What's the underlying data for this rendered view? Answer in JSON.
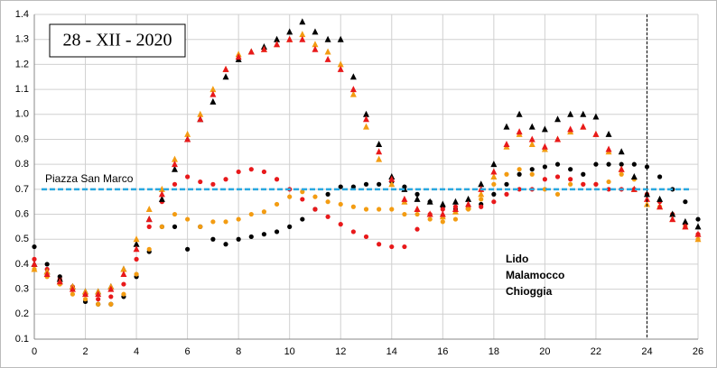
{
  "chart_data": {
    "type": "scatter",
    "title": "28 - XII - 2020",
    "x": [
      0,
      0.5,
      1,
      1.5,
      2,
      2.5,
      3,
      3.5,
      4,
      4.5,
      5,
      5.5,
      6,
      6.5,
      7,
      7.5,
      8,
      8.5,
      9,
      9.5,
      10,
      10.5,
      11,
      11.5,
      12,
      12.5,
      13,
      13.5,
      14,
      14.5,
      15,
      15.5,
      16,
      16.5,
      17,
      17.5,
      18,
      18.5,
      19,
      19.5,
      20,
      20.5,
      21,
      21.5,
      22,
      22.5,
      23,
      23.5,
      24,
      24.5,
      25,
      25.5,
      26
    ],
    "series": [
      {
        "name": "Lido",
        "color": "#000000",
        "triangles": [
          0.4,
          0.37,
          0.34,
          0.31,
          0.29,
          0.29,
          0.31,
          0.38,
          0.48,
          0.58,
          0.66,
          0.78,
          0.9,
          0.98,
          1.05,
          1.15,
          1.22,
          1.25,
          1.27,
          1.3,
          1.33,
          1.37,
          1.33,
          1.3,
          1.3,
          1.15,
          1.0,
          0.88,
          0.75,
          0.7,
          0.66,
          0.65,
          0.64,
          0.65,
          0.66,
          0.72,
          0.8,
          0.95,
          1.0,
          0.95,
          0.94,
          0.98,
          1.0,
          1.0,
          0.99,
          0.92,
          0.85,
          0.75,
          0.68,
          0.66,
          0.6,
          0.57,
          0.55
        ],
        "dots": [
          0.47,
          0.4,
          0.35,
          0.3,
          0.25,
          0.24,
          0.24,
          0.27,
          0.35,
          0.45,
          0.55,
          0.55,
          0.46,
          0.55,
          0.5,
          0.48,
          0.5,
          0.51,
          0.52,
          0.53,
          0.55,
          0.58,
          0.62,
          0.68,
          0.71,
          0.71,
          0.72,
          0.72,
          0.73,
          0.71,
          0.68,
          0.65,
          0.63,
          0.62,
          0.63,
          0.64,
          0.68,
          0.72,
          0.76,
          0.78,
          0.79,
          0.8,
          0.78,
          0.76,
          0.8,
          0.8,
          0.8,
          0.8,
          0.79,
          0.75,
          0.7,
          0.65,
          0.58
        ]
      },
      {
        "name": "Malamocco",
        "color": "#f39c12",
        "triangles": [
          0.38,
          0.37,
          0.33,
          0.31,
          0.29,
          0.29,
          0.31,
          0.38,
          0.5,
          0.62,
          0.7,
          0.82,
          0.92,
          1.0,
          1.1,
          1.18,
          1.24,
          1.25,
          1.26,
          1.28,
          1.3,
          1.32,
          1.28,
          1.25,
          1.2,
          1.08,
          0.95,
          0.82,
          0.72,
          0.65,
          0.62,
          0.6,
          0.59,
          0.61,
          0.63,
          0.68,
          0.75,
          0.87,
          0.92,
          0.88,
          0.86,
          0.9,
          0.93,
          0.95,
          0.92,
          0.85,
          0.78,
          0.7,
          0.64,
          0.63,
          0.58,
          0.55,
          0.5
        ],
        "dots": [
          0.38,
          0.35,
          0.32,
          0.28,
          0.26,
          0.24,
          0.24,
          0.28,
          0.36,
          0.46,
          0.55,
          0.6,
          0.58,
          0.55,
          0.57,
          0.57,
          0.58,
          0.6,
          0.61,
          0.64,
          0.67,
          0.69,
          0.67,
          0.65,
          0.64,
          0.63,
          0.62,
          0.62,
          0.62,
          0.6,
          0.6,
          0.58,
          0.57,
          0.58,
          0.62,
          0.66,
          0.72,
          0.76,
          0.78,
          0.76,
          0.7,
          0.68,
          0.72,
          0.72,
          0.72,
          0.73,
          0.76,
          0.74,
          0.68,
          0.63,
          0.6,
          0.55,
          0.5
        ]
      },
      {
        "name": "Chioggia",
        "color": "#e8191b",
        "triangles": [
          0.4,
          0.36,
          0.33,
          0.3,
          0.28,
          0.28,
          0.3,
          0.36,
          0.46,
          0.58,
          0.68,
          0.8,
          0.9,
          0.98,
          1.08,
          1.18,
          1.23,
          1.25,
          1.26,
          1.28,
          1.3,
          1.3,
          1.26,
          1.22,
          1.18,
          1.1,
          0.98,
          0.85,
          0.74,
          0.66,
          0.62,
          0.6,
          0.6,
          0.62,
          0.64,
          0.7,
          0.77,
          0.88,
          0.93,
          0.9,
          0.87,
          0.9,
          0.94,
          0.95,
          0.92,
          0.86,
          0.78,
          0.7,
          0.66,
          0.63,
          0.58,
          0.55,
          0.52
        ],
        "dots": [
          0.42,
          0.38,
          0.34,
          0.31,
          0.28,
          0.26,
          0.27,
          0.32,
          0.42,
          0.55,
          0.65,
          0.72,
          0.75,
          0.73,
          0.72,
          0.74,
          0.77,
          0.78,
          0.77,
          0.74,
          0.7,
          0.66,
          0.62,
          0.59,
          0.56,
          0.53,
          0.51,
          0.48,
          0.47,
          0.47,
          0.54,
          0.6,
          0.62,
          0.63,
          0.63,
          0.63,
          0.65,
          0.68,
          0.7,
          0.7,
          0.74,
          0.75,
          0.74,
          0.72,
          0.72,
          0.7,
          0.7,
          0.7,
          0.68,
          0.65,
          0.6,
          0.56,
          0.52
        ]
      }
    ],
    "reference": {
      "label": "Piazza San Marco",
      "value": 0.7,
      "color": "#29a8e0"
    },
    "vline": 24,
    "xlim": [
      0,
      26
    ],
    "xticks": [
      0,
      2,
      4,
      6,
      8,
      10,
      12,
      14,
      16,
      18,
      20,
      22,
      24,
      26
    ],
    "ylim": [
      0.1,
      1.4
    ],
    "yticks": [
      0.1,
      0.2,
      0.3,
      0.4,
      0.5,
      0.6,
      0.7,
      0.8,
      0.9,
      {
        "value": 1,
        "label": "1.0"
      },
      1.1,
      1.2,
      1.3,
      1.4
    ],
    "grid": true
  }
}
